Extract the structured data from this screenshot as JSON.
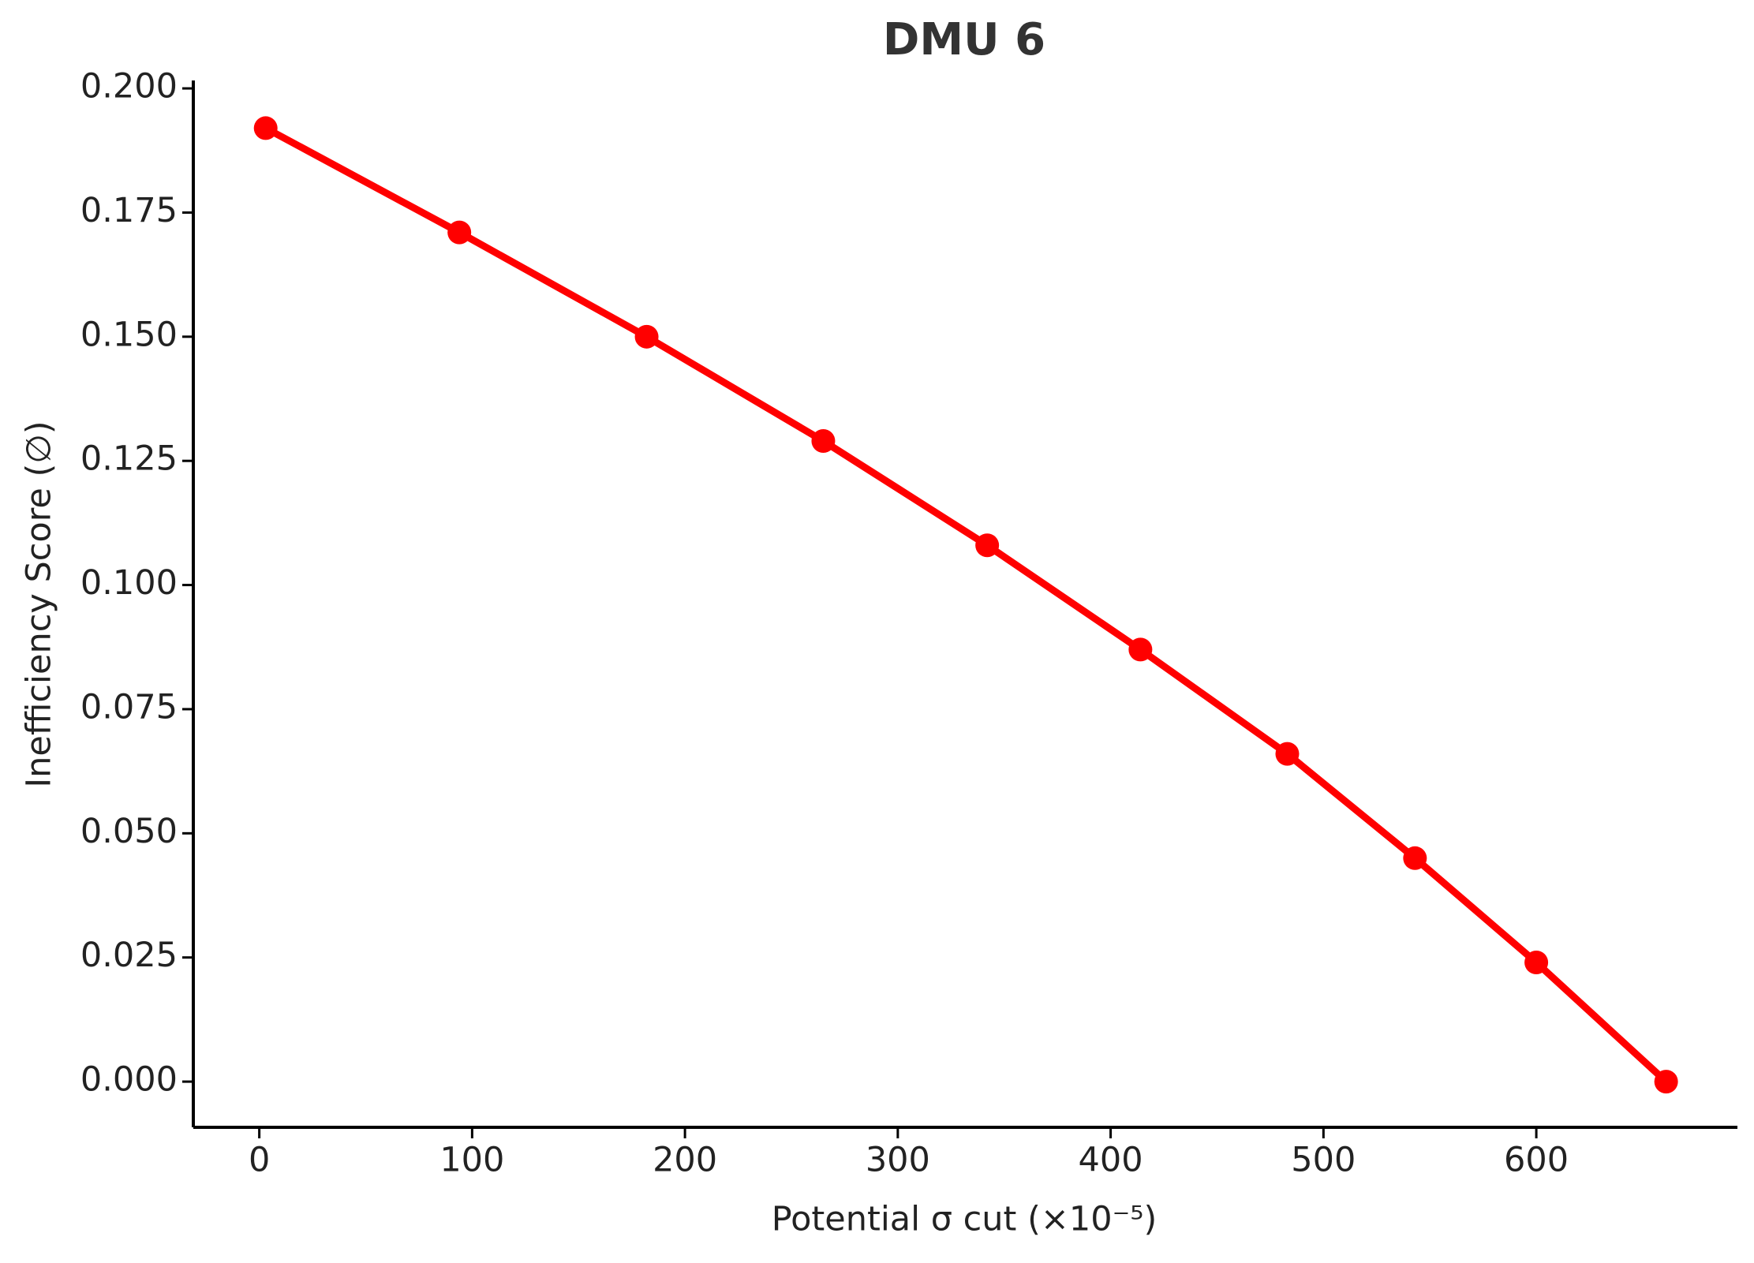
{
  "chart_data": {
    "type": "line",
    "title": "DMU 6",
    "x_label": "Potential σ cut (×10⁻⁵)",
    "y_label": "Inefficiency Score (∅)",
    "x": [
      3,
      94,
      182,
      265,
      342,
      414,
      483,
      543,
      600,
      661
    ],
    "values": [
      0.192,
      0.171,
      0.15,
      0.129,
      0.108,
      0.087,
      0.066,
      0.045,
      0.024,
      0.0
    ],
    "color": "#ff0000",
    "xlim": [
      -31,
      694.5
    ],
    "ylim": [
      -0.0092,
      0.2016
    ],
    "xticks": [
      0,
      100,
      200,
      300,
      400,
      500,
      600
    ],
    "yticks": [
      {
        "value": 0,
        "label": "0.000"
      },
      {
        "value": 0.025,
        "label": "0.025"
      },
      {
        "value": 0.05,
        "label": "0.050"
      },
      {
        "value": 0.075,
        "label": "0.075"
      },
      {
        "value": 0.1,
        "label": "0.100"
      },
      {
        "value": 0.125,
        "label": "0.125"
      },
      {
        "value": 0.15,
        "label": "0.150"
      },
      {
        "value": 0.175,
        "label": "0.175"
      },
      {
        "value": 0.2,
        "label": "0.200"
      }
    ]
  }
}
